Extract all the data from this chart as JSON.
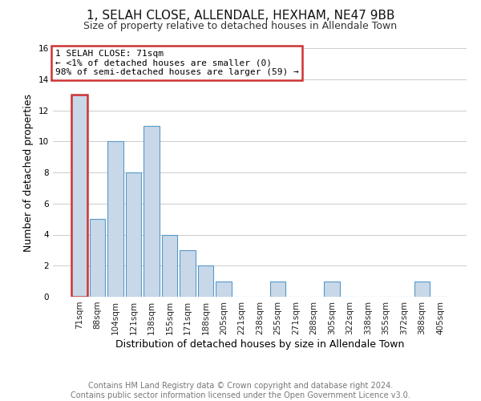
{
  "title": "1, SELAH CLOSE, ALLENDALE, HEXHAM, NE47 9BB",
  "subtitle": "Size of property relative to detached houses in Allendale Town",
  "xlabel": "Distribution of detached houses by size in Allendale Town",
  "ylabel": "Number of detached properties",
  "footer_line1": "Contains HM Land Registry data © Crown copyright and database right 2024.",
  "footer_line2": "Contains public sector information licensed under the Open Government Licence v3.0.",
  "categories": [
    "71sqm",
    "88sqm",
    "104sqm",
    "121sqm",
    "138sqm",
    "155sqm",
    "171sqm",
    "188sqm",
    "205sqm",
    "221sqm",
    "238sqm",
    "255sqm",
    "271sqm",
    "288sqm",
    "305sqm",
    "322sqm",
    "338sqm",
    "355sqm",
    "372sqm",
    "388sqm",
    "405sqm"
  ],
  "values": [
    13,
    5,
    10,
    8,
    11,
    4,
    3,
    2,
    1,
    0,
    0,
    1,
    0,
    0,
    1,
    0,
    0,
    0,
    0,
    1,
    0
  ],
  "bar_color": "#c8d8e8",
  "bar_edge_color": "#5599cc",
  "highlight_bar_index": 0,
  "highlight_edge_color": "#cc3333",
  "annotation_title": "1 SELAH CLOSE: 71sqm",
  "annotation_line2": "← <1% of detached houses are smaller (0)",
  "annotation_line3": "98% of semi-detached houses are larger (59) →",
  "annotation_box_edge_color": "#cc3333",
  "ylim": [
    0,
    16
  ],
  "yticks": [
    0,
    2,
    4,
    6,
    8,
    10,
    12,
    14,
    16
  ],
  "bg_color": "#ffffff",
  "grid_color": "#cccccc",
  "title_fontsize": 11,
  "subtitle_fontsize": 9,
  "axis_label_fontsize": 9,
  "tick_fontsize": 7.5,
  "footer_fontsize": 7,
  "annotation_fontsize": 8
}
